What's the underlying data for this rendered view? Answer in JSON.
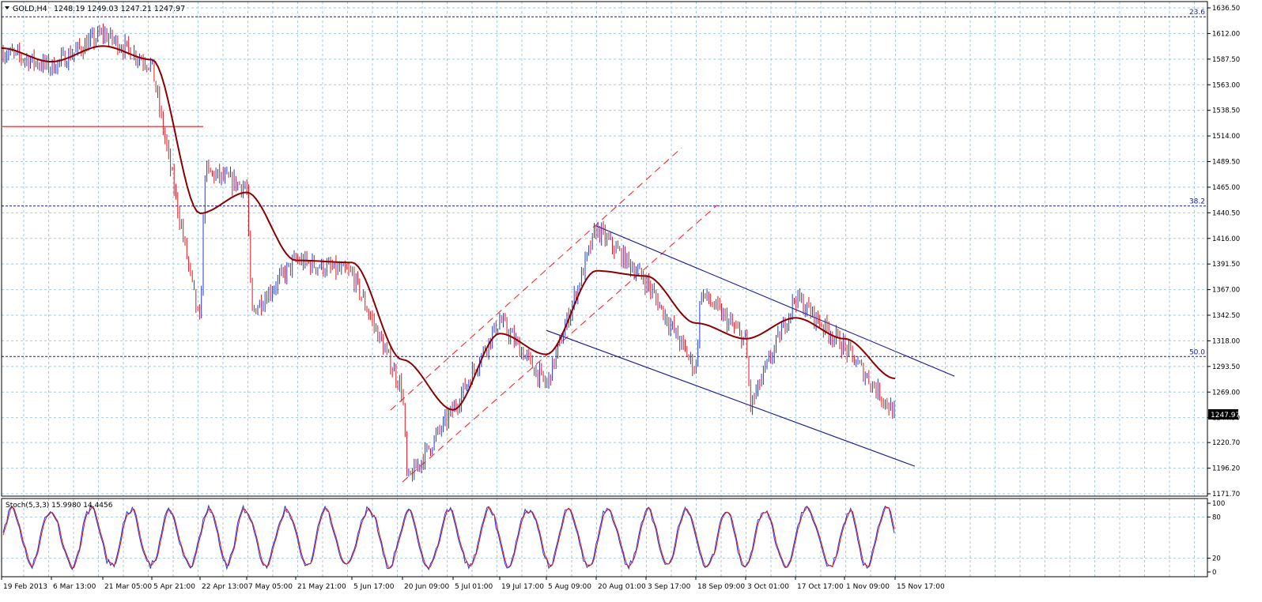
{
  "header": {
    "symbol": "GOLD,H4",
    "ohlc": "1248.19 1249.03 1247.21 1247.97"
  },
  "colors": {
    "bg": "#ffffff",
    "grid": "#a9c9dd",
    "frame": "#000000",
    "bull": "#1f3bd6",
    "bear": "#e0161c",
    "ma": "#8b0000",
    "channel_up": "#ff2a2a",
    "channel_down": "#1a1a99",
    "fib": "#1a1a99",
    "support": "#e0161c",
    "stoch_main": "#1f3bd6",
    "stoch_signal": "#e0161c",
    "price_label_bg": "#000000",
    "price_label_fg": "#ffffff"
  },
  "chart_data": {
    "type": "candlestick",
    "symbol": "GOLD",
    "timeframe": "H4",
    "last_price": "1247.97",
    "price_axis": {
      "range": [
        1171.7,
        1641.0
      ],
      "ticks": [
        "1636.50",
        "1612.00",
        "1587.50",
        "1563.00",
        "1538.50",
        "1514.00",
        "1489.50",
        "1465.00",
        "1440.50",
        "1416.00",
        "1391.50",
        "1367.00",
        "1342.50",
        "1318.00",
        "1293.50",
        "1269.00",
        "1244.50",
        "1220.70",
        "1196.20",
        "1171.70"
      ]
    },
    "time_axis": {
      "labels": [
        "19 Feb 2013",
        "6 Mar 13:00",
        "21 Mar 05:00",
        "5 Apr 21:00",
        "22 Apr 13:00",
        "7 May 05:00",
        "21 May 21:00",
        "5 Jun 17:00",
        "20 Jun 09:00",
        "5 Jul 01:00",
        "19 Jul 17:00",
        "5 Aug 09:00",
        "20 Aug 01:00",
        "3 Sep 17:00",
        "18 Sep 09:00",
        "3 Oct 01:00",
        "17 Oct 17:00",
        "1 Nov 09:00",
        "15 Nov 17:00"
      ]
    },
    "price_path": [
      [
        "19 Feb 2013",
        1595
      ],
      [
        "6 Mar 13:00",
        1580
      ],
      [
        "21 Mar 05:00",
        1612
      ],
      [
        "5 Apr 21:00",
        1582
      ],
      [
        "5 Apr 21:00",
        1555
      ],
      [
        "22 Apr 13:00",
        1330
      ],
      [
        "22 Apr 13:00",
        1480
      ],
      [
        "7 May 05:00",
        1465
      ],
      [
        "7 May 05:00",
        1345
      ],
      [
        "21 May 21:00",
        1395
      ],
      [
        "5 Jun 17:00",
        1382
      ],
      [
        "20 Jun 09:00",
        1270
      ],
      [
        "20 Jun 09:00",
        1183
      ],
      [
        "5 Jul 01:00",
        1252
      ],
      [
        "19 Jul 17:00",
        1338
      ],
      [
        "5 Aug 09:00",
        1275
      ],
      [
        "20 Aug 01:00",
        1425
      ],
      [
        "3 Sep 17:00",
        1375
      ],
      [
        "18 Sep 09:00",
        1290
      ],
      [
        "18 Sep 09:00",
        1365
      ],
      [
        "3 Oct 01:00",
        1318
      ],
      [
        "3 Oct 01:00",
        1255
      ],
      [
        "17 Oct 17:00",
        1360
      ],
      [
        "1 Nov 09:00",
        1312
      ],
      [
        "15 Nov 17:00",
        1248
      ]
    ],
    "moving_average": [
      [
        "19 Feb 2013",
        1598
      ],
      [
        "6 Mar 13:00",
        1585
      ],
      [
        "21 Mar 05:00",
        1600
      ],
      [
        "5 Apr 21:00",
        1587
      ],
      [
        "22 Apr 13:00",
        1440
      ],
      [
        "7 May 05:00",
        1460
      ],
      [
        "21 May 21:00",
        1395
      ],
      [
        "5 Jun 17:00",
        1393
      ],
      [
        "20 Jun 09:00",
        1300
      ],
      [
        "5 Jul 01:00",
        1252
      ],
      [
        "19 Jul 17:00",
        1325
      ],
      [
        "5 Aug 09:00",
        1305
      ],
      [
        "20 Aug 01:00",
        1385
      ],
      [
        "3 Sep 17:00",
        1380
      ],
      [
        "18 Sep 09:00",
        1335
      ],
      [
        "3 Oct 01:00",
        1320
      ],
      [
        "17 Oct 17:00",
        1340
      ],
      [
        "1 Nov 09:00",
        1320
      ],
      [
        "15 Nov 17:00",
        1282
      ]
    ],
    "fibonacci_levels": [
      {
        "label": "23.6",
        "price": 1628
      },
      {
        "label": "38.2",
        "price": 1447
      },
      {
        "label": "50.0",
        "price": 1303
      }
    ],
    "horizontal_lines": [
      {
        "price": 1523
      }
    ],
    "ascending_channel": {
      "upper": [
        [
          "20 Jun 09:00",
          1262
        ],
        [
          "3 Sep 17:00",
          1472
        ]
      ],
      "lower": [
        [
          "20 Jun 09:00",
          1183
        ],
        [
          "3 Sep 17:00",
          1388
        ]
      ]
    },
    "descending_channel": {
      "upper": [
        [
          "20 Aug 01:00",
          1428
        ],
        [
          "15 Nov 17:00",
          1308
        ]
      ],
      "lower": [
        [
          "5 Aug 09:00",
          1328
        ],
        [
          "15 Nov 17:00",
          1205
        ]
      ]
    }
  },
  "stochastic": {
    "label": "Stoch(5,3,3) 15.9980 14.4456",
    "ticks": [
      "100",
      "80",
      "20",
      "0"
    ],
    "levels": [
      80,
      20
    ]
  }
}
